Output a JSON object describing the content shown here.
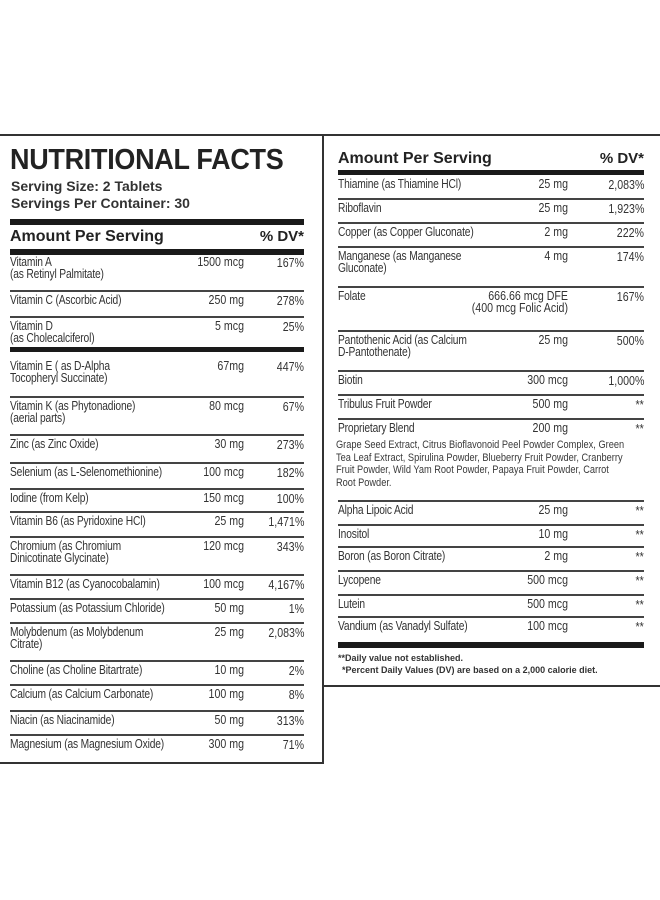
{
  "header": {
    "title": "NUTRITIONAL FACTS",
    "serving_size": "Serving Size: 2 Tablets",
    "servings_per_container": "Servings Per Container: 30"
  },
  "columns": {
    "amount_label": "Amount Per Serving",
    "dv_label": "% DV*"
  },
  "left_rows": [
    {
      "name": "Vitamin A\n(as Retinyl Palmitate)",
      "amount": "1500 mcg",
      "dv": "167%"
    },
    {
      "name": "Vitamin C (Ascorbic Acid)",
      "amount": "250 mg",
      "dv": "278%"
    },
    {
      "name": "Vitamin D\n(as Cholecalciferol)",
      "amount": "5 mcg",
      "dv": "25%"
    },
    {
      "name": "Vitamin E ( as D-Alpha\nTocopheryl Succinate)",
      "amount": "67mg",
      "dv": "447%"
    },
    {
      "name": "Vitamin K (as Phytonadione)\n(aerial parts)",
      "amount": "80 mcg",
      "dv": "67%"
    },
    {
      "name": "Zinc (as Zinc Oxide)",
      "amount": "30 mg",
      "dv": "273%"
    },
    {
      "name": "Selenium (as L-Selenomethionine)",
      "amount": "100 mcg",
      "dv": "182%"
    },
    {
      "name": "Iodine (from Kelp)",
      "amount": "150 mcg",
      "dv": "100%"
    },
    {
      "name": "Vitamin B6 (as Pyridoxine HCl)",
      "amount": "25 mg",
      "dv": "1,471%"
    },
    {
      "name": "Chromium (as Chromium\nDinicotinate Glycinate)",
      "amount": "120 mcg",
      "dv": "343%"
    },
    {
      "name": "Vitamin B12 (as Cyanocobalamin)",
      "amount": "100 mcg",
      "dv": "4,167%"
    },
    {
      "name": "Potassium (as Potassium Chloride)",
      "amount": "50 mg",
      "dv": "1%"
    },
    {
      "name": "Molybdenum (as Molybdenum\nCitrate)",
      "amount": "25 mg",
      "dv": "2,083%"
    },
    {
      "name": "Choline (as Choline Bitartrate)",
      "amount": "10 mg",
      "dv": "2%"
    },
    {
      "name": "Calcium (as Calcium Carbonate)",
      "amount": "100 mg",
      "dv": "8%"
    },
    {
      "name": "Niacin (as Niacinamide)",
      "amount": "50 mg",
      "dv": "313%"
    },
    {
      "name": "Magnesium (as Magnesium Oxide)",
      "amount": "300 mg",
      "dv": "71%"
    }
  ],
  "right_rows": [
    {
      "name": "Thiamine (as Thiamine HCl)",
      "amount": "25 mg",
      "dv": "2,083%"
    },
    {
      "name": "Riboflavin",
      "amount": "25 mg",
      "dv": "1,923%"
    },
    {
      "name": "Copper (as Copper Gluconate)",
      "amount": "2 mg",
      "dv": "222%"
    },
    {
      "name": "Manganese (as Manganese\nGluconate)",
      "amount": "4 mg",
      "dv": "174%"
    },
    {
      "name": "Folate",
      "amount": "666.66 mcg DFE\n(400 mcg Folic Acid)",
      "dv": "167%"
    },
    {
      "name": "Pantothenic Acid (as Calcium\nD-Pantothenate)",
      "amount": "25 mg",
      "dv": "500%"
    },
    {
      "name": "Biotin",
      "amount": "300 mcg",
      "dv": "1,000%"
    },
    {
      "name": "Tribulus Fruit Powder",
      "amount": "500 mg",
      "dv": "**"
    },
    {
      "name": "Proprietary Blend",
      "amount": "200 mg",
      "dv": "**"
    },
    {
      "name": "Alpha Lipoic Acid",
      "amount": "25 mg",
      "dv": "**"
    },
    {
      "name": "Inositol",
      "amount": "10 mg",
      "dv": "**"
    },
    {
      "name": "Boron (as Boron Citrate)",
      "amount": "2 mg",
      "dv": "**"
    },
    {
      "name": "Lycopene",
      "amount": "500 mcg",
      "dv": "**"
    },
    {
      "name": "Lutein",
      "amount": "500 mcg",
      "dv": "**"
    },
    {
      "name": "Vandium (as Vanadyl Sulfate)",
      "amount": "100 mcg",
      "dv": "**"
    }
  ],
  "proprietary_blend_ingredients": "Grape Seed Extract, Citrus Bioflavonoid Peel Powder Complex, Green Tea Leaf Extract, Spirulina Powder, Blueberry Fruit Powder, Cranberry Fruit Powder, Wild Yam Root Powder, Papaya Fruit Powder, Carrot Root Powder.",
  "footnotes": {
    "not_established": "**Daily value not established.",
    "percent_dv": "*Percent Daily Values (DV) are based on a 2,000 calorie diet."
  }
}
